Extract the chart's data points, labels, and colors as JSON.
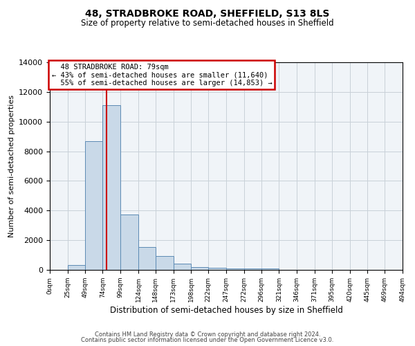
{
  "title": "48, STRADBROKE ROAD, SHEFFIELD, S13 8LS",
  "subtitle": "Size of property relative to semi-detached houses in Sheffield",
  "xlabel": "Distribution of semi-detached houses by size in Sheffield",
  "ylabel": "Number of semi-detached properties",
  "property_size": 79,
  "property_label": "48 STRADBROKE ROAD: 79sqm",
  "pct_smaller": 43,
  "pct_larger": 55,
  "n_smaller": 11640,
  "n_larger": 14853,
  "bin_edges": [
    0,
    25,
    49,
    74,
    99,
    124,
    148,
    173,
    198,
    222,
    247,
    272,
    296,
    321,
    346,
    371,
    395,
    420,
    445,
    469,
    494
  ],
  "bin_labels": [
    "0sqm",
    "25sqm",
    "49sqm",
    "74sqm",
    "99sqm",
    "124sqm",
    "148sqm",
    "173sqm",
    "198sqm",
    "222sqm",
    "247sqm",
    "272sqm",
    "296sqm",
    "321sqm",
    "346sqm",
    "371sqm",
    "395sqm",
    "420sqm",
    "445sqm",
    "469sqm",
    "494sqm"
  ],
  "bar_heights": [
    0,
    350,
    8700,
    11100,
    3750,
    1550,
    950,
    400,
    200,
    150,
    100,
    100,
    100,
    0,
    0,
    0,
    0,
    0,
    0,
    0
  ],
  "bar_color": "#c9d9e8",
  "bar_edge_color": "#5c8ab4",
  "red_line_color": "#cc0000",
  "box_edge_color": "#cc0000",
  "ylim": [
    0,
    14000
  ],
  "yticks": [
    0,
    2000,
    4000,
    6000,
    8000,
    10000,
    12000,
    14000
  ],
  "grid_color": "#c8d0d8",
  "bg_color": "#f0f4f8",
  "footer_line1": "Contains HM Land Registry data © Crown copyright and database right 2024.",
  "footer_line2": "Contains public sector information licensed under the Open Government Licence v3.0."
}
